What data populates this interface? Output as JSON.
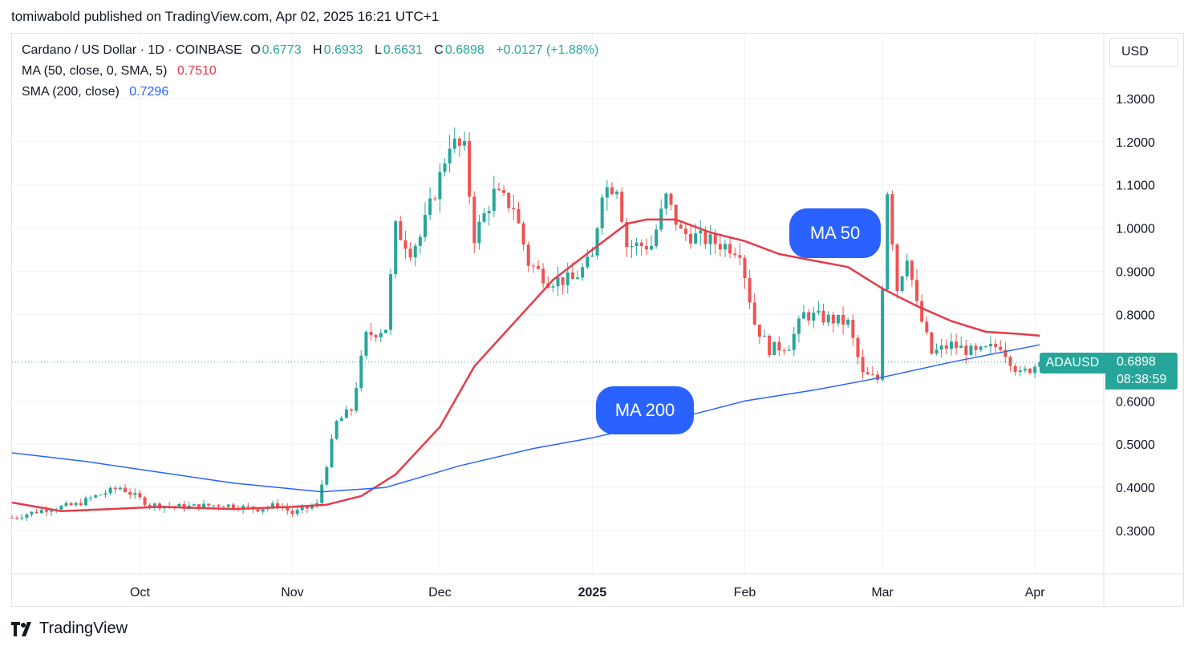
{
  "header": {
    "published": "tomiwabold published on TradingView.com, Apr 02, 2025 16:21 UTC+1"
  },
  "legend": {
    "symbol_line": "Cardano / US Dollar · 1D · COINBASE",
    "o_label": "O",
    "o_value": "0.6773",
    "h_label": "H",
    "h_value": "0.6933",
    "l_label": "L",
    "l_value": "0.6631",
    "c_label": "C",
    "c_value": "0.6898",
    "change": "+0.0127 (+1.88%)",
    "ma50_label": "MA (50, close, 0, SMA, 5)",
    "ma50_value": "0.7510",
    "sma200_label": "SMA (200, close)",
    "sma200_value": "0.7296"
  },
  "currency_button": "USD",
  "price_tag": {
    "symbol": "ADAUSD",
    "price": "0.6898",
    "countdown": "08:38:59"
  },
  "annotations": {
    "ma50": "MA 50",
    "ma200": "MA 200"
  },
  "brand": {
    "name": "TradingView"
  },
  "colors": {
    "up": "#26a69a",
    "down": "#ef5350",
    "ma50": "#e53b4a",
    "sma200": "#2962ff",
    "grid": "#f0f3fa"
  },
  "chart_data": {
    "type": "candlestick",
    "symbol": "Cardano / US Dollar",
    "interval": "1D",
    "exchange": "COINBASE",
    "ylim": [
      0.2,
      1.45
    ],
    "y_ticks": [
      "1.3000",
      "1.2000",
      "1.1000",
      "1.0000",
      "0.9000",
      "0.8000",
      "0.6000",
      "0.5000",
      "0.4000",
      "0.3000"
    ],
    "x_ticks": [
      "Oct",
      "Nov",
      "Dec",
      "2025",
      "Feb",
      "Mar",
      "Apr"
    ],
    "x_tick_dates": [
      "2024-10-01",
      "2024-11-01",
      "2024-12-01",
      "2025-01-01",
      "2025-02-01",
      "2025-03-01",
      "2025-04-01"
    ],
    "x_range": [
      "2024-09-05",
      "2025-04-15"
    ],
    "grid": true,
    "last_price": 0.6898,
    "close_anchors": [
      [
        "2024-09-05",
        0.33
      ],
      [
        "2024-09-12",
        0.35
      ],
      [
        "2024-09-18",
        0.36
      ],
      [
        "2024-09-22",
        0.38
      ],
      [
        "2024-09-27",
        0.4
      ],
      [
        "2024-10-03",
        0.36
      ],
      [
        "2024-10-10",
        0.355
      ],
      [
        "2024-10-18",
        0.36
      ],
      [
        "2024-10-25",
        0.35
      ],
      [
        "2024-10-29",
        0.36
      ],
      [
        "2024-11-01",
        0.34
      ],
      [
        "2024-11-06",
        0.36
      ],
      [
        "2024-11-10",
        0.55
      ],
      [
        "2024-11-13",
        0.58
      ],
      [
        "2024-11-16",
        0.75
      ],
      [
        "2024-11-20",
        0.77
      ],
      [
        "2024-11-22",
        1.0
      ],
      [
        "2024-11-25",
        0.95
      ],
      [
        "2024-11-27",
        0.98
      ],
      [
        "2024-12-01",
        1.12
      ],
      [
        "2024-12-03",
        1.2
      ],
      [
        "2024-12-06",
        1.18
      ],
      [
        "2024-12-08",
        0.98
      ],
      [
        "2024-12-12",
        1.08
      ],
      [
        "2024-12-16",
        1.05
      ],
      [
        "2024-12-19",
        0.92
      ],
      [
        "2024-12-23",
        0.88
      ],
      [
        "2024-12-28",
        0.88
      ],
      [
        "2025-01-01",
        0.93
      ],
      [
        "2025-01-03",
        1.09
      ],
      [
        "2025-01-06",
        1.1
      ],
      [
        "2025-01-08",
        0.96
      ],
      [
        "2025-01-13",
        0.96
      ],
      [
        "2025-01-16",
        1.07
      ],
      [
        "2025-01-19",
        0.99
      ],
      [
        "2025-01-25",
        0.97
      ],
      [
        "2025-01-31",
        0.95
      ],
      [
        "2025-02-03",
        0.78
      ],
      [
        "2025-02-06",
        0.72
      ],
      [
        "2025-02-10",
        0.73
      ],
      [
        "2025-02-13",
        0.8
      ],
      [
        "2025-02-18",
        0.79
      ],
      [
        "2025-02-22",
        0.78
      ],
      [
        "2025-02-25",
        0.66
      ],
      [
        "2025-02-28",
        0.65
      ],
      [
        "2025-03-02",
        1.09
      ],
      [
        "2025-03-04",
        0.86
      ],
      [
        "2025-03-06",
        0.94
      ],
      [
        "2025-03-08",
        0.82
      ],
      [
        "2025-03-11",
        0.71
      ],
      [
        "2025-03-15",
        0.73
      ],
      [
        "2025-03-20",
        0.71
      ],
      [
        "2025-03-25",
        0.73
      ],
      [
        "2025-03-29",
        0.66
      ],
      [
        "2025-04-02",
        0.6898
      ]
    ],
    "series": [
      {
        "name": "MA (50, close, 0, SMA, 5)",
        "last_value": 0.751,
        "points": [
          [
            "2024-09-05",
            0.365
          ],
          [
            "2024-09-15",
            0.345
          ],
          [
            "2024-09-25",
            0.35
          ],
          [
            "2024-10-05",
            0.355
          ],
          [
            "2024-10-20",
            0.35
          ],
          [
            "2024-11-01",
            0.355
          ],
          [
            "2024-11-08",
            0.36
          ],
          [
            "2024-11-15",
            0.38
          ],
          [
            "2024-11-22",
            0.43
          ],
          [
            "2024-12-01",
            0.54
          ],
          [
            "2024-12-08",
            0.68
          ],
          [
            "2024-12-16",
            0.78
          ],
          [
            "2024-12-24",
            0.88
          ],
          [
            "2025-01-01",
            0.95
          ],
          [
            "2025-01-08",
            1.01
          ],
          [
            "2025-01-12",
            1.02
          ],
          [
            "2025-01-18",
            1.02
          ],
          [
            "2025-01-25",
            0.99
          ],
          [
            "2025-02-01",
            0.97
          ],
          [
            "2025-02-08",
            0.94
          ],
          [
            "2025-02-15",
            0.925
          ],
          [
            "2025-02-22",
            0.91
          ],
          [
            "2025-03-01",
            0.86
          ],
          [
            "2025-03-08",
            0.82
          ],
          [
            "2025-03-15",
            0.785
          ],
          [
            "2025-03-22",
            0.76
          ],
          [
            "2025-03-29",
            0.755
          ],
          [
            "2025-04-02",
            0.751
          ]
        ]
      },
      {
        "name": "SMA (200, close)",
        "last_value": 0.7296,
        "points": [
          [
            "2024-09-05",
            0.48
          ],
          [
            "2024-09-20",
            0.46
          ],
          [
            "2024-10-05",
            0.435
          ],
          [
            "2024-10-20",
            0.41
          ],
          [
            "2024-11-07",
            0.39
          ],
          [
            "2024-11-20",
            0.4
          ],
          [
            "2024-12-05",
            0.45
          ],
          [
            "2024-12-20",
            0.49
          ],
          [
            "2025-01-01",
            0.515
          ],
          [
            "2025-01-15",
            0.55
          ],
          [
            "2025-02-01",
            0.6
          ],
          [
            "2025-02-15",
            0.625
          ],
          [
            "2025-03-01",
            0.655
          ],
          [
            "2025-03-15",
            0.69
          ],
          [
            "2025-04-02",
            0.73
          ]
        ]
      }
    ]
  }
}
